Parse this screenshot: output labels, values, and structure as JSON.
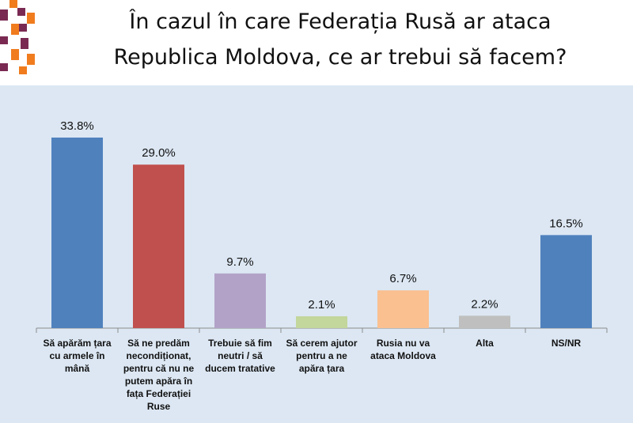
{
  "title": {
    "line1": "În cazul în care Federația Rusă ar ataca",
    "line2": "Republica Moldova, ce ar trebui să facem?"
  },
  "colors": {
    "background": "#dce7f3",
    "accent_orange": "#f07c1e",
    "accent_purple": "#7a2a52"
  },
  "chart_data": {
    "type": "bar",
    "title": "În cazul în care Federația Rusă ar ataca Republica Moldova, ce ar trebui să facem?",
    "xlabel": "",
    "ylabel": "",
    "ylim": [
      0,
      35
    ],
    "grid": false,
    "legend": "none",
    "categories": [
      "Să apărăm țara cu armele în mână",
      "Să ne predăm necondiționat, pentru că nu ne putem apăra în fața Federației Ruse",
      "Trebuie să fim neutri / să ducem tratative",
      "Să cerem ajutor pentru a ne apăra țara",
      "Rusia nu va ataca Moldova",
      "Alta",
      "NS/NR"
    ],
    "category_lines": [
      [
        "Să apărăm țara",
        "cu armele în",
        "mână"
      ],
      [
        "Să ne predăm",
        "necondiționat,",
        "pentru că nu ne",
        "putem apăra în",
        "fața Federației",
        "Ruse"
      ],
      [
        "Trebuie să fim",
        "neutri / să",
        "ducem tratative"
      ],
      [
        "Să cerem ajutor",
        "pentru a ne",
        "apăra țara"
      ],
      [
        "Rusia nu va",
        "ataca Moldova"
      ],
      [
        "Alta"
      ],
      [
        "NS/NR"
      ]
    ],
    "values": [
      33.8,
      29.0,
      9.7,
      2.1,
      6.7,
      2.2,
      16.5
    ],
    "value_labels": [
      "33.8%",
      "29.0%",
      "9.7%",
      "2.1%",
      "6.7%",
      "2.2%",
      "16.5%"
    ],
    "bar_colors": [
      "#4f81bd",
      "#c0504d",
      "#b3a2c7",
      "#c3d69b",
      "#fac090",
      "#bfbfbf",
      "#4f81bd"
    ]
  }
}
